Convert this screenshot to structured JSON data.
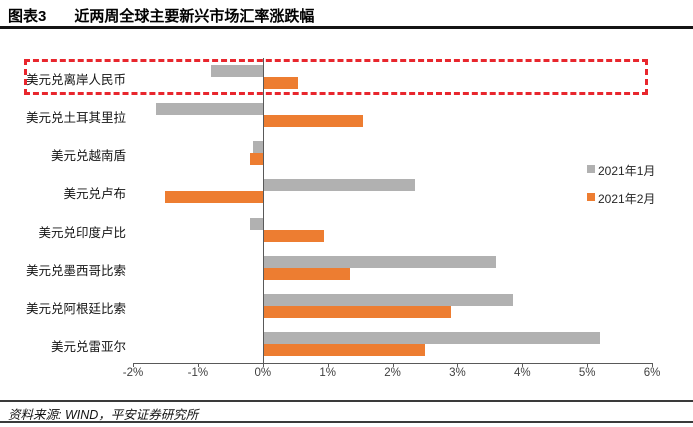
{
  "header": {
    "figure_label": "图表3",
    "title": "近两周全球主要新兴市场汇率涨跌幅"
  },
  "chart_data": {
    "type": "bar",
    "orientation": "horizontal",
    "title": "近两周全球主要新兴市场汇率涨跌幅",
    "categories": [
      "美元兑离岸人民币",
      "美元兑土耳其里拉",
      "美元兑越南盾",
      "美元兑卢布",
      "美元兑印度卢比",
      "美元兑墨西哥比索",
      "美元兑阿根廷比索",
      "美元兑雷亚尔"
    ],
    "series": [
      {
        "name": "2021年1月",
        "color": "#b1b1b1",
        "values": [
          -0.8,
          -1.65,
          -0.15,
          2.35,
          -0.2,
          3.6,
          3.85,
          5.2
        ]
      },
      {
        "name": "2021年2月",
        "color": "#ed7d31",
        "values": [
          0.55,
          1.55,
          -0.2,
          -1.5,
          0.95,
          1.35,
          2.9,
          2.5
        ]
      }
    ],
    "unit": "%",
    "x_min": -2,
    "x_max": 6,
    "x_tick_step": 1,
    "x_tick_labels": [
      "-2%",
      "-1%",
      "0%",
      "1%",
      "2%",
      "3%",
      "4%",
      "5%",
      "6%"
    ],
    "grid": false,
    "legend_position": "right",
    "axis_color": "#595959",
    "highlight": {
      "category": "美元兑离岸人民币",
      "style": "dashed-box",
      "color": "#e8262d"
    }
  },
  "footer": {
    "source": "资料来源: WIND，平安证券研究所"
  }
}
